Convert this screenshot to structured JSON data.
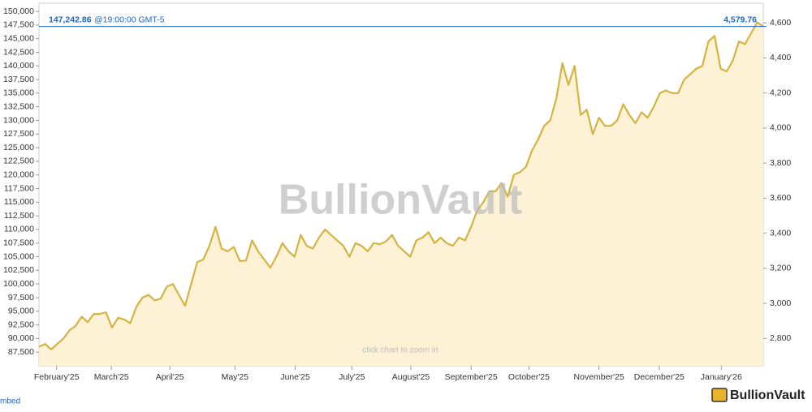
{
  "chart_data": {
    "type": "area",
    "watermark": "BullionVault",
    "zoom_hint": "click chart to zoom in",
    "embed_link": "mbed",
    "logo": "BullionVault",
    "current": {
      "value": 147242.86,
      "label": "147,242.86",
      "time": "@19:00:00 GMT-5",
      "value2": 4579.76,
      "label2": "4,579.76"
    },
    "series": [
      {
        "color": "#d6b23e",
        "fill": "#fdf1d2",
        "values": [
          88500,
          89000,
          88000,
          89000,
          90000,
          91500,
          92300,
          94000,
          93000,
          94500,
          94500,
          94800,
          92000,
          93800,
          93500,
          92800,
          95800,
          97500,
          98000,
          97000,
          97300,
          99500,
          100000,
          98000,
          96000,
          100000,
          104000,
          104500,
          107000,
          110500,
          106500,
          106000,
          106800,
          104200,
          104300,
          108000,
          106000,
          104500,
          103000,
          105000,
          107500,
          106000,
          105000,
          109000,
          107000,
          106500,
          108500,
          110000,
          109000,
          108000,
          107000,
          105000,
          107500,
          107000,
          106000,
          107500,
          107300,
          107800,
          109000,
          107000,
          106000,
          105000,
          108000,
          108500,
          109500,
          107500,
          108500,
          107500,
          107000,
          108500,
          108000,
          110500,
          113500,
          115000,
          117000,
          117000,
          118500,
          116000,
          120000,
          120500,
          121500,
          124500,
          126500,
          129000,
          130000,
          134000,
          140500,
          136500,
          140000,
          131000,
          132000,
          127500,
          130500,
          129000,
          129000,
          130000,
          133000,
          131000,
          129500,
          131500,
          130500,
          132500,
          135000,
          135500,
          135000,
          135000,
          137500,
          138500,
          139500,
          140000,
          144500,
          145500,
          139500,
          139000,
          141000,
          144500,
          144000,
          146000,
          148000,
          147242.86
        ]
      }
    ],
    "xlim": [
      0,
      119
    ],
    "xticks": [
      {
        "value": 2.9,
        "label": "February'25"
      },
      {
        "value": 11.9,
        "label": "March'25"
      },
      {
        "value": 21.5,
        "label": "April'25"
      },
      {
        "value": 32.2,
        "label": "May'25"
      },
      {
        "value": 42.1,
        "label": "June'25"
      },
      {
        "value": 51.4,
        "label": "July'25"
      },
      {
        "value": 61.1,
        "label": "August'25"
      },
      {
        "value": 71,
        "label": "September'25"
      },
      {
        "value": 80.5,
        "label": "October'25"
      },
      {
        "value": 92,
        "label": "November'25"
      },
      {
        "value": 101.9,
        "label": "December'25"
      },
      {
        "value": 112.1,
        "label": "January'26"
      }
    ],
    "ylim": [
      85000,
      151500
    ],
    "yticks": [
      {
        "value": 87500,
        "label": "87,500"
      },
      {
        "value": 90000,
        "label": "90,000"
      },
      {
        "value": 92500,
        "label": "92,500"
      },
      {
        "value": 95000,
        "label": "95,000"
      },
      {
        "value": 97500,
        "label": "97,500"
      },
      {
        "value": 100000,
        "label": "100,000"
      },
      {
        "value": 102500,
        "label": "102,500"
      },
      {
        "value": 105000,
        "label": "105,000"
      },
      {
        "value": 107500,
        "label": "107,500"
      },
      {
        "value": 110000,
        "label": "110,000"
      },
      {
        "value": 112500,
        "label": "112,500"
      },
      {
        "value": 115000,
        "label": "115,000"
      },
      {
        "value": 117500,
        "label": "117,500"
      },
      {
        "value": 120000,
        "label": "120,000"
      },
      {
        "value": 122500,
        "label": "122,500"
      },
      {
        "value": 125000,
        "label": "125,000"
      },
      {
        "value": 127500,
        "label": "127,500"
      },
      {
        "value": 130000,
        "label": "130,000"
      },
      {
        "value": 132500,
        "label": "132,500"
      },
      {
        "value": 135000,
        "label": "135,000"
      },
      {
        "value": 137500,
        "label": "137,500"
      },
      {
        "value": 140000,
        "label": "140,000"
      },
      {
        "value": 142500,
        "label": "142,500"
      },
      {
        "value": 145000,
        "label": "145,000"
      },
      {
        "value": 147500,
        "label": "147,500"
      },
      {
        "value": 150000,
        "label": "150,000"
      }
    ],
    "y2lim": [
      2644,
      4712
    ],
    "y2ticks": [
      {
        "value": 2800,
        "label": "2,800"
      },
      {
        "value": 3000,
        "label": "3,000"
      },
      {
        "value": 3200,
        "label": "3,200"
      },
      {
        "value": 3400,
        "label": "3,400"
      },
      {
        "value": 3600,
        "label": "3,600"
      },
      {
        "value": 3800,
        "label": "3,800"
      },
      {
        "value": 4000,
        "label": "4,000"
      },
      {
        "value": 4200,
        "label": "4,200"
      },
      {
        "value": 4400,
        "label": "4,400"
      },
      {
        "value": 4600,
        "label": "4,600"
      }
    ],
    "line_color": "#1a66cc"
  }
}
